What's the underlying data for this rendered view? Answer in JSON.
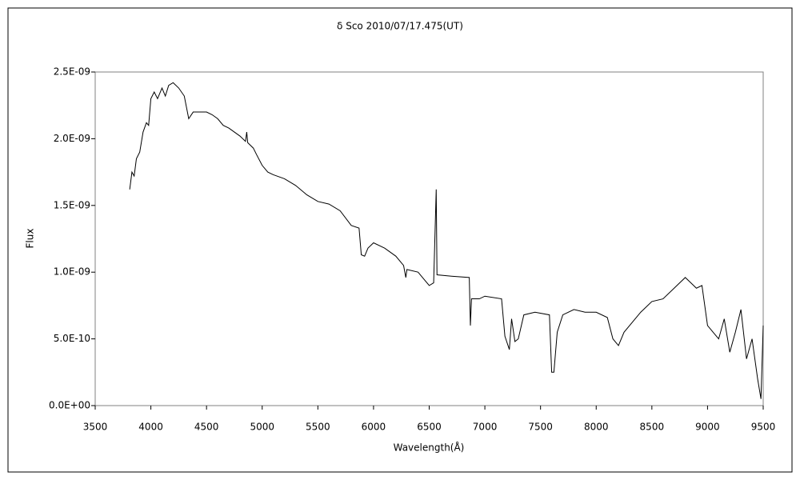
{
  "chart_data": {
    "type": "line",
    "title": "δ  Sco   2010/07/17.475(UT)",
    "x_label": "Wavelength(Å)",
    "y_label": "Flux",
    "color": "#000000",
    "xlim": [
      3500,
      9500
    ],
    "xticks": [
      3500,
      4000,
      4500,
      5000,
      5500,
      6000,
      6500,
      7000,
      7500,
      8000,
      8500,
      9000,
      9500
    ],
    "ylim": [
      0,
      2.5e-09
    ],
    "yticks": [
      {
        "value": 0,
        "label": "0.0E+00"
      },
      {
        "value": 5e-10,
        "label": "5.0E-10"
      },
      {
        "value": 1e-09,
        "label": "1.0E-09"
      },
      {
        "value": 1.5e-09,
        "label": "1.5E-09"
      },
      {
        "value": 2e-09,
        "label": "2.0E-09"
      },
      {
        "value": 2.5e-09,
        "label": "2.5E-09"
      }
    ],
    "grid": false,
    "x": [
      3810,
      3830,
      3850,
      3870,
      3900,
      3930,
      3960,
      3980,
      4000,
      4030,
      4060,
      4100,
      4130,
      4160,
      4200,
      4250,
      4300,
      4340,
      4380,
      4450,
      4500,
      4550,
      4600,
      4650,
      4700,
      4750,
      4800,
      4850,
      4861,
      4870,
      4920,
      4950,
      5000,
      5050,
      5100,
      5200,
      5300,
      5400,
      5500,
      5600,
      5700,
      5800,
      5870,
      5890,
      5920,
      5950,
      6000,
      6100,
      6200,
      6270,
      6290,
      6300,
      6400,
      6450,
      6500,
      6540,
      6563,
      6570,
      6700,
      6860,
      6870,
      6880,
      6950,
      7000,
      7150,
      7180,
      7220,
      7240,
      7270,
      7300,
      7350,
      7450,
      7580,
      7600,
      7620,
      7650,
      7700,
      7800,
      7900,
      8000,
      8100,
      8150,
      8200,
      8250,
      8400,
      8500,
      8600,
      8700,
      8800,
      8850,
      8900,
      8950,
      9000,
      9050,
      9100,
      9150,
      9200,
      9250,
      9300,
      9350,
      9400,
      9450,
      9480,
      9500
    ],
    "values": [
      1.62e-09,
      1.75e-09,
      1.72e-09,
      1.85e-09,
      1.9e-09,
      2.05e-09,
      2.12e-09,
      2.1e-09,
      2.3e-09,
      2.35e-09,
      2.3e-09,
      2.38e-09,
      2.32e-09,
      2.4e-09,
      2.42e-09,
      2.38e-09,
      2.32e-09,
      2.15e-09,
      2.2e-09,
      2.2e-09,
      2.2e-09,
      2.18e-09,
      2.15e-09,
      2.1e-09,
      2.08e-09,
      2.05e-09,
      2.02e-09,
      1.98e-09,
      2.05e-09,
      1.97e-09,
      1.93e-09,
      1.88e-09,
      1.8e-09,
      1.75e-09,
      1.73e-09,
      1.7e-09,
      1.65e-09,
      1.58e-09,
      1.53e-09,
      1.51e-09,
      1.46e-09,
      1.35e-09,
      1.33e-09,
      1.13e-09,
      1.12e-09,
      1.18e-09,
      1.22e-09,
      1.18e-09,
      1.12e-09,
      1.05e-09,
      9.6e-10,
      1.02e-09,
      1e-09,
      9.5e-10,
      9e-10,
      9.2e-10,
      1.62e-09,
      9.8e-10,
      9.7e-10,
      9.6e-10,
      6e-10,
      8e-10,
      8e-10,
      8.2e-10,
      8e-10,
      5.2e-10,
      4.2e-10,
      6.5e-10,
      4.8e-10,
      5e-10,
      6.8e-10,
      7e-10,
      6.8e-10,
      2.5e-10,
      2.5e-10,
      5.5e-10,
      6.8e-10,
      7.2e-10,
      7e-10,
      7e-10,
      6.6e-10,
      5e-10,
      4.5e-10,
      5.5e-10,
      7e-10,
      7.8e-10,
      8e-10,
      8.8e-10,
      9.6e-10,
      9.2e-10,
      8.8e-10,
      9e-10,
      6e-10,
      5.5e-10,
      5e-10,
      6.5e-10,
      4e-10,
      5.5e-10,
      7.2e-10,
      3.5e-10,
      5e-10,
      2e-10,
      5e-11,
      6e-10
    ]
  }
}
